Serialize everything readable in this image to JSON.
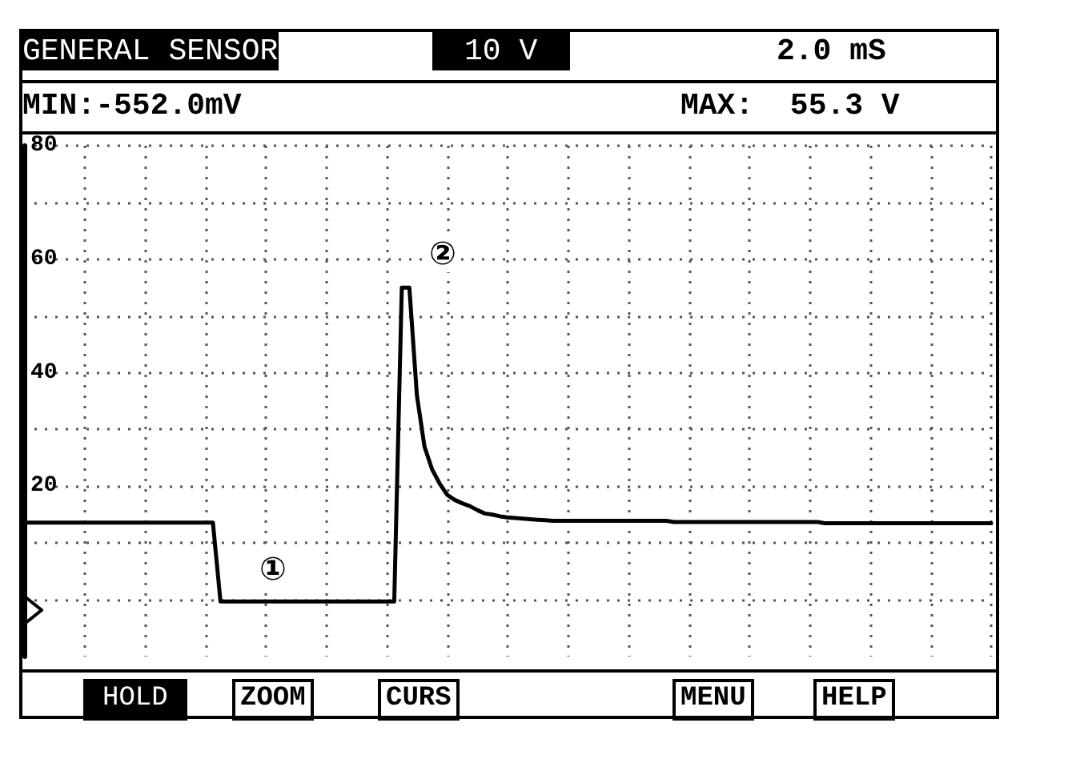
{
  "chart_data": {
    "type": "line",
    "title": "GENERAL SENSOR",
    "categories": [
      null,
      null,
      null,
      null,
      null,
      null,
      null,
      null,
      null,
      null,
      null,
      null,
      null,
      null,
      null,
      null,
      null,
      null,
      null,
      null,
      null,
      null,
      null,
      null,
      null,
      null,
      null,
      null,
      null,
      null,
      null,
      null,
      null,
      null,
      null,
      null,
      null,
      null,
      null,
      null,
      null,
      null,
      null,
      null,
      null,
      null,
      null,
      null,
      null,
      null,
      null,
      null,
      null,
      null,
      null,
      null,
      null,
      null,
      null,
      null,
      null,
      null,
      null,
      null,
      null,
      null,
      null,
      null,
      null,
      null,
      null,
      null,
      null,
      null,
      null,
      null,
      null,
      null,
      null,
      null,
      null,
      null,
      null,
      null,
      null,
      null,
      null,
      null,
      null,
      null,
      null,
      null,
      null,
      null,
      null,
      null,
      null,
      null,
      null,
      null,
      null,
      null,
      null,
      null,
      null,
      null,
      null,
      null,
      null,
      null,
      null,
      null,
      null,
      null,
      null,
      null,
      null,
      null,
      null,
      null,
      null,
      null,
      null,
      null,
      null,
      null,
      null,
      null,
      null
    ],
    "series": [
      {
        "color": "#000000",
        "values": [
          13.6,
          13.6,
          13.6,
          13.6,
          13.6,
          13.6,
          13.6,
          13.6,
          13.6,
          13.6,
          13.6,
          13.6,
          13.6,
          13.6,
          13.6,
          13.6,
          13.6,
          13.6,
          13.6,
          13.6,
          13.6,
          13.6,
          13.6,
          13.6,
          13.6,
          13.6,
          -0.3,
          -0.3,
          -0.3,
          -0.3,
          -0.3,
          -0.3,
          -0.3,
          -0.3,
          -0.3,
          -0.3,
          -0.3,
          -0.3,
          -0.3,
          -0.3,
          -0.3,
          -0.3,
          -0.3,
          -0.3,
          -0.3,
          -0.3,
          -0.3,
          -0.3,
          -0.3,
          -0.3,
          55,
          55,
          36,
          27,
          23,
          20.5,
          18.5,
          17.6,
          17,
          16.5,
          15.8,
          15.2,
          15,
          14.7,
          14.5,
          14.4,
          14.3,
          14.2,
          14.1,
          14,
          13.9,
          13.9,
          13.9,
          13.9,
          13.9,
          13.9,
          13.9,
          13.9,
          13.9,
          13.9,
          13.9,
          13.9,
          13.9,
          13.9,
          13.9,
          13.9,
          13.7,
          13.7,
          13.7,
          13.7,
          13.7,
          13.7,
          13.7,
          13.7,
          13.7,
          13.7,
          13.7,
          13.7,
          13.7,
          13.7,
          13.7,
          13.7,
          13.7,
          13.7,
          13.7,
          13.7,
          13.5,
          13.5,
          13.5,
          13.5,
          13.5,
          13.5,
          13.5,
          13.5,
          13.5,
          13.5,
          13.5,
          13.5,
          13.5,
          13.5,
          13.5,
          13.5,
          13.5,
          13.5,
          13.5,
          13.5,
          13.5,
          13.5,
          13.5
        ]
      }
    ],
    "ylim": [
      -10,
      80
    ],
    "yticks": [
      {
        "value": 0,
        "label": null
      },
      {
        "value": 10,
        "label": null
      },
      20,
      {
        "value": 30,
        "label": null
      },
      40,
      {
        "value": 50,
        "label": null
      },
      60,
      {
        "value": 70,
        "label": null
      },
      80
    ],
    "grid": true,
    "marker": "none",
    "line_style": "solid",
    "annotations": [
      "10 V",
      "2.0 mS",
      "MIN:-552.0mV",
      "MAX:  55.3 V",
      "HOLD",
      "ZOOM",
      "CURS",
      "MENU",
      "HELP",
      "①",
      "②"
    ]
  }
}
